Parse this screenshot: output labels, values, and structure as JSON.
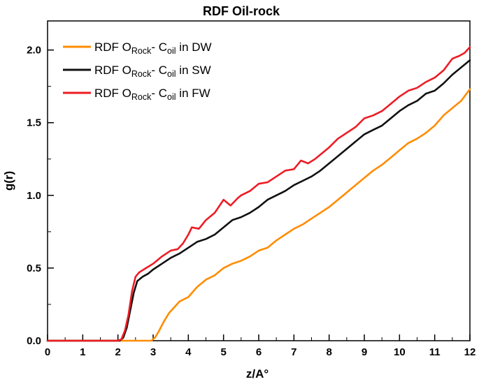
{
  "figure_title": "RDF Oil-rock",
  "chart_data": {
    "type": "line",
    "title": "RDF Oil-rock",
    "xlabel": "z/A°",
    "ylabel": "g(r)",
    "xlim": [
      0,
      12
    ],
    "ylim": [
      0,
      2.2
    ],
    "grid": false,
    "legend_position": "top-left",
    "x_minor_step": 0.5,
    "y_minor_step": 0.25,
    "y_major_step": 0.5,
    "x_ticks": {
      "values": [
        0,
        1,
        2,
        3,
        4,
        5,
        6,
        7,
        8,
        9,
        10,
        11,
        12
      ],
      "labels": [
        "0",
        "1",
        "2",
        "3",
        "4",
        "5",
        "6",
        "7",
        "8",
        "9",
        "10",
        "11",
        "12"
      ]
    },
    "y_ticks": {
      "values": [
        0,
        0.5,
        1.0,
        1.5,
        2.0
      ],
      "labels": [
        "0.0",
        "0.5",
        "1.0",
        "1.5",
        "2.0"
      ]
    },
    "series": [
      {
        "key": "DW",
        "name": "RDF O_Rock- C_oil in DW",
        "color": "#FF8C00",
        "label_parts": [
          {
            "t": "RDF O"
          },
          {
            "t": "Rock",
            "sub": true
          },
          {
            "t": "- C"
          },
          {
            "t": "oil",
            "sub": true
          },
          {
            "t": " in DW"
          }
        ],
        "points": [
          [
            0,
            0
          ],
          [
            1.0,
            0
          ],
          [
            2.0,
            0
          ],
          [
            2.95,
            0
          ],
          [
            3.05,
            0.02
          ],
          [
            3.15,
            0.06
          ],
          [
            3.3,
            0.13
          ],
          [
            3.45,
            0.19
          ],
          [
            3.6,
            0.23
          ],
          [
            3.75,
            0.27
          ],
          [
            4.0,
            0.3
          ],
          [
            4.25,
            0.37
          ],
          [
            4.5,
            0.42
          ],
          [
            4.75,
            0.45
          ],
          [
            5.0,
            0.5
          ],
          [
            5.25,
            0.53
          ],
          [
            5.5,
            0.55
          ],
          [
            5.75,
            0.58
          ],
          [
            6.0,
            0.62
          ],
          [
            6.25,
            0.64
          ],
          [
            6.5,
            0.69
          ],
          [
            6.75,
            0.73
          ],
          [
            7.0,
            0.77
          ],
          [
            7.25,
            0.8
          ],
          [
            7.5,
            0.84
          ],
          [
            7.75,
            0.88
          ],
          [
            8.0,
            0.92
          ],
          [
            8.25,
            0.97
          ],
          [
            8.5,
            1.02
          ],
          [
            8.75,
            1.07
          ],
          [
            9.0,
            1.12
          ],
          [
            9.25,
            1.17
          ],
          [
            9.5,
            1.21
          ],
          [
            9.75,
            1.26
          ],
          [
            10.0,
            1.31
          ],
          [
            10.25,
            1.36
          ],
          [
            10.5,
            1.39
          ],
          [
            10.75,
            1.43
          ],
          [
            11.0,
            1.48
          ],
          [
            11.25,
            1.55
          ],
          [
            11.5,
            1.6
          ],
          [
            11.75,
            1.65
          ],
          [
            12.0,
            1.73
          ]
        ]
      },
      {
        "key": "SW",
        "name": "RDF O_Rock- C_oil in SW",
        "color": "#111111",
        "label_parts": [
          {
            "t": "RDF O"
          },
          {
            "t": "Rock",
            "sub": true
          },
          {
            "t": "- C"
          },
          {
            "t": "oil",
            "sub": true
          },
          {
            "t": " in SW"
          }
        ],
        "points": [
          [
            0,
            0
          ],
          [
            1.0,
            0
          ],
          [
            2.05,
            0
          ],
          [
            2.15,
            0.02
          ],
          [
            2.25,
            0.09
          ],
          [
            2.35,
            0.21
          ],
          [
            2.45,
            0.33
          ],
          [
            2.55,
            0.41
          ],
          [
            2.7,
            0.44
          ],
          [
            2.85,
            0.46
          ],
          [
            3.0,
            0.49
          ],
          [
            3.25,
            0.53
          ],
          [
            3.5,
            0.57
          ],
          [
            3.75,
            0.6
          ],
          [
            4.0,
            0.64
          ],
          [
            4.25,
            0.68
          ],
          [
            4.5,
            0.7
          ],
          [
            4.75,
            0.73
          ],
          [
            5.0,
            0.78
          ],
          [
            5.25,
            0.83
          ],
          [
            5.5,
            0.85
          ],
          [
            5.75,
            0.88
          ],
          [
            6.0,
            0.92
          ],
          [
            6.25,
            0.97
          ],
          [
            6.5,
            1.0
          ],
          [
            6.75,
            1.03
          ],
          [
            7.0,
            1.07
          ],
          [
            7.25,
            1.1
          ],
          [
            7.5,
            1.13
          ],
          [
            7.75,
            1.17
          ],
          [
            8.0,
            1.22
          ],
          [
            8.25,
            1.27
          ],
          [
            8.5,
            1.32
          ],
          [
            8.75,
            1.37
          ],
          [
            9.0,
            1.42
          ],
          [
            9.25,
            1.45
          ],
          [
            9.5,
            1.48
          ],
          [
            9.75,
            1.53
          ],
          [
            10.0,
            1.58
          ],
          [
            10.25,
            1.62
          ],
          [
            10.5,
            1.65
          ],
          [
            10.75,
            1.7
          ],
          [
            11.0,
            1.72
          ],
          [
            11.25,
            1.77
          ],
          [
            11.5,
            1.83
          ],
          [
            11.75,
            1.88
          ],
          [
            12.0,
            1.93
          ]
        ]
      },
      {
        "key": "FW",
        "name": "RDF O_Rock- C_oil in FW",
        "color": "#ED1C24",
        "label_parts": [
          {
            "t": "RDF O"
          },
          {
            "t": "Rock",
            "sub": true
          },
          {
            "t": "- C"
          },
          {
            "t": "oil",
            "sub": true
          },
          {
            "t": " in FW"
          }
        ],
        "points": [
          [
            0,
            0
          ],
          [
            1.0,
            0
          ],
          [
            2.0,
            0
          ],
          [
            2.1,
            0.01
          ],
          [
            2.2,
            0.07
          ],
          [
            2.3,
            0.18
          ],
          [
            2.4,
            0.34
          ],
          [
            2.5,
            0.44
          ],
          [
            2.6,
            0.47
          ],
          [
            2.8,
            0.5
          ],
          [
            3.0,
            0.53
          ],
          [
            3.25,
            0.58
          ],
          [
            3.5,
            0.62
          ],
          [
            3.7,
            0.63
          ],
          [
            3.85,
            0.67
          ],
          [
            4.0,
            0.73
          ],
          [
            4.1,
            0.78
          ],
          [
            4.3,
            0.77
          ],
          [
            4.5,
            0.83
          ],
          [
            4.75,
            0.88
          ],
          [
            5.0,
            0.97
          ],
          [
            5.2,
            0.93
          ],
          [
            5.4,
            0.98
          ],
          [
            5.5,
            1.0
          ],
          [
            5.75,
            1.03
          ],
          [
            6.0,
            1.08
          ],
          [
            6.25,
            1.09
          ],
          [
            6.5,
            1.13
          ],
          [
            6.75,
            1.17
          ],
          [
            7.0,
            1.18
          ],
          [
            7.2,
            1.24
          ],
          [
            7.4,
            1.22
          ],
          [
            7.6,
            1.25
          ],
          [
            7.75,
            1.28
          ],
          [
            8.0,
            1.33
          ],
          [
            8.25,
            1.39
          ],
          [
            8.5,
            1.43
          ],
          [
            8.75,
            1.47
          ],
          [
            9.0,
            1.53
          ],
          [
            9.25,
            1.55
          ],
          [
            9.5,
            1.58
          ],
          [
            9.75,
            1.63
          ],
          [
            10.0,
            1.68
          ],
          [
            10.25,
            1.72
          ],
          [
            10.5,
            1.74
          ],
          [
            10.75,
            1.78
          ],
          [
            11.0,
            1.81
          ],
          [
            11.25,
            1.86
          ],
          [
            11.5,
            1.94
          ],
          [
            11.7,
            1.96
          ],
          [
            11.85,
            1.98
          ],
          [
            12.0,
            2.02
          ]
        ]
      }
    ]
  }
}
